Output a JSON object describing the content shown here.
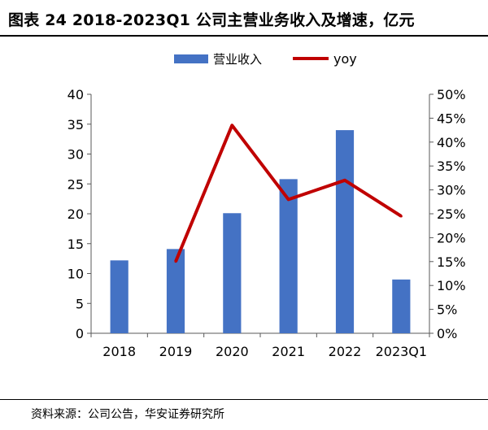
{
  "title": "图表 24 2018-2023Q1 公司主营业务收入及增速，亿元",
  "source": "资料来源：公司公告，华安证券研究所",
  "colors": {
    "bar": "#4472C4",
    "line": "#C00000",
    "axis": "#595959",
    "text": "#000000"
  },
  "chart_data": {
    "type": "bar",
    "categories": [
      "2018",
      "2019",
      "2020",
      "2021",
      "2022",
      "2023Q1"
    ],
    "series": [
      {
        "name": "营业收入",
        "type": "bar",
        "axis": "left",
        "values": [
          12.2,
          14.1,
          20.1,
          25.8,
          34.0,
          9.0
        ]
      },
      {
        "name": "yoy",
        "type": "line",
        "axis": "right",
        "values": [
          null,
          15.0,
          43.5,
          28.0,
          32.0,
          24.5
        ]
      }
    ],
    "y_left": {
      "min": 0,
      "max": 40,
      "step": 5,
      "ticks": [
        "0",
        "5",
        "10",
        "15",
        "20",
        "25",
        "30",
        "35",
        "40"
      ]
    },
    "y_right": {
      "min": 0,
      "max": 50,
      "step": 5,
      "ticks": [
        "0%",
        "5%",
        "10%",
        "15%",
        "20%",
        "25%",
        "30%",
        "35%",
        "40%",
        "45%",
        "50%"
      ]
    },
    "legend": {
      "placement": "top",
      "items": [
        "营业收入",
        "yoy"
      ]
    },
    "grid": false
  }
}
